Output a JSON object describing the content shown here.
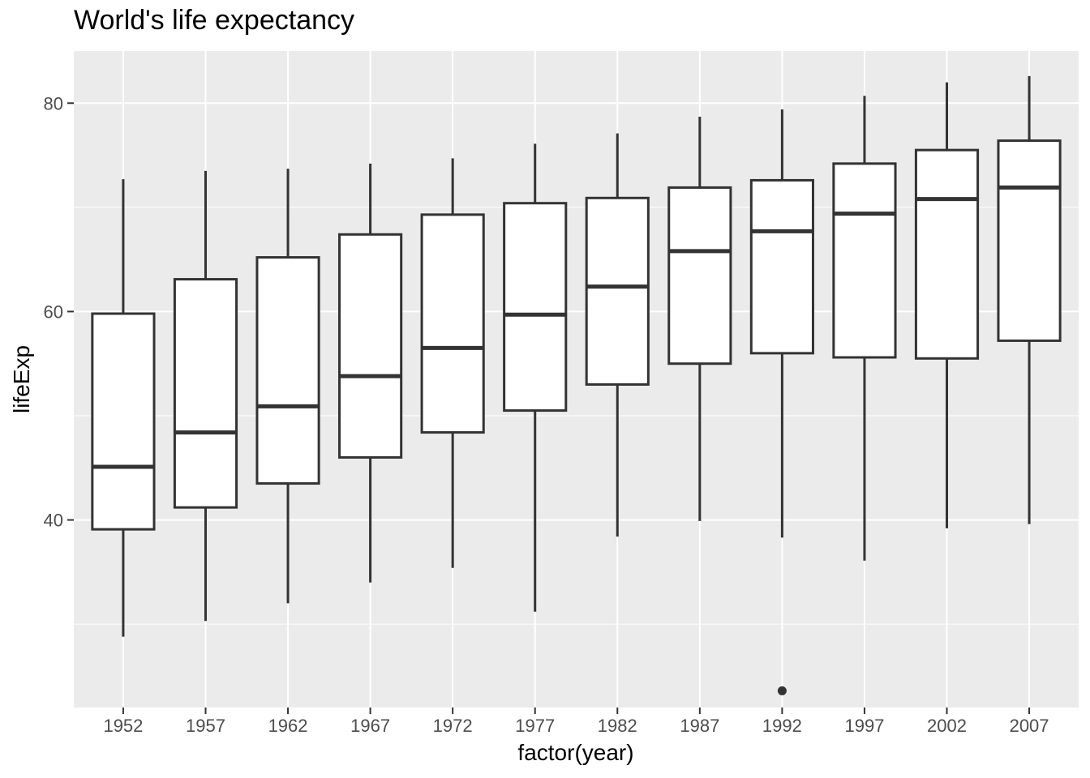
{
  "chart_data": {
    "type": "boxplot",
    "title": "World's life expectancy",
    "xlabel": "factor(year)",
    "ylabel": "lifeExp",
    "ylim": [
      22,
      85
    ],
    "yticks": [
      40,
      60,
      80
    ],
    "grid": true,
    "legend": "none",
    "colors": {
      "panel": "#ebebeb",
      "grid": "#ffffff",
      "box_fill": "#ffffff",
      "box_line": "#333333",
      "tick_text": "#4d4d4d"
    },
    "categories": [
      "1952",
      "1957",
      "1962",
      "1967",
      "1972",
      "1977",
      "1982",
      "1987",
      "1992",
      "1997",
      "2002",
      "2007"
    ],
    "boxes": [
      {
        "year": "1952",
        "lower_whisker": 28.8,
        "q1": 39.1,
        "median": 45.1,
        "q3": 59.8,
        "upper_whisker": 72.7,
        "outliers": []
      },
      {
        "year": "1957",
        "lower_whisker": 30.3,
        "q1": 41.2,
        "median": 48.4,
        "q3": 63.1,
        "upper_whisker": 73.5,
        "outliers": []
      },
      {
        "year": "1962",
        "lower_whisker": 32.0,
        "q1": 43.5,
        "median": 50.9,
        "q3": 65.2,
        "upper_whisker": 73.7,
        "outliers": []
      },
      {
        "year": "1967",
        "lower_whisker": 34.0,
        "q1": 46.0,
        "median": 53.8,
        "q3": 67.4,
        "upper_whisker": 74.2,
        "outliers": []
      },
      {
        "year": "1972",
        "lower_whisker": 35.4,
        "q1": 48.4,
        "median": 56.5,
        "q3": 69.3,
        "upper_whisker": 74.7,
        "outliers": []
      },
      {
        "year": "1977",
        "lower_whisker": 31.2,
        "q1": 50.5,
        "median": 59.7,
        "q3": 70.4,
        "upper_whisker": 76.1,
        "outliers": []
      },
      {
        "year": "1982",
        "lower_whisker": 38.4,
        "q1": 53.0,
        "median": 62.4,
        "q3": 70.9,
        "upper_whisker": 77.1,
        "outliers": []
      },
      {
        "year": "1987",
        "lower_whisker": 39.9,
        "q1": 55.0,
        "median": 65.8,
        "q3": 71.9,
        "upper_whisker": 78.7,
        "outliers": []
      },
      {
        "year": "1992",
        "lower_whisker": 38.3,
        "q1": 56.0,
        "median": 67.7,
        "q3": 72.6,
        "upper_whisker": 79.4,
        "outliers": [
          23.6
        ]
      },
      {
        "year": "1997",
        "lower_whisker": 36.1,
        "q1": 55.6,
        "median": 69.4,
        "q3": 74.2,
        "upper_whisker": 80.7,
        "outliers": []
      },
      {
        "year": "2002",
        "lower_whisker": 39.2,
        "q1": 55.5,
        "median": 70.8,
        "q3": 75.5,
        "upper_whisker": 82.0,
        "outliers": []
      },
      {
        "year": "2007",
        "lower_whisker": 39.6,
        "q1": 57.2,
        "median": 71.9,
        "q3": 76.4,
        "upper_whisker": 82.6,
        "outliers": []
      }
    ]
  }
}
